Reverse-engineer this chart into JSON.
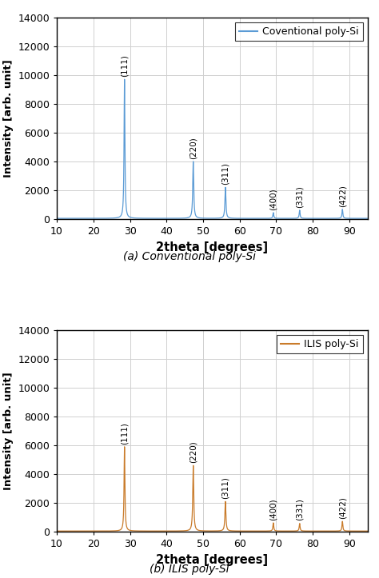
{
  "xlim": [
    10,
    95
  ],
  "ylim": [
    0,
    14000
  ],
  "xticks": [
    10,
    20,
    30,
    40,
    50,
    60,
    70,
    80,
    90
  ],
  "yticks": [
    0,
    2000,
    4000,
    6000,
    8000,
    10000,
    12000,
    14000
  ],
  "xlabel": "2theta [degrees]",
  "ylabel": "Intensity [arb. unit]",
  "caption_a": "(a) Conventional poly-Si",
  "caption_b": "(b) ILIS poly-Si",
  "legend_a": "Coventional poly-Si",
  "legend_b": "ILIS poly-Si",
  "color_a": "#5b9bd5",
  "color_b": "#c97b2a",
  "peaks_a": {
    "positions": [
      28.5,
      47.3,
      56.1,
      69.2,
      76.4,
      88.1
    ],
    "heights": [
      9700,
      4000,
      2200,
      450,
      620,
      680
    ],
    "labels": [
      "(111)",
      "(220)",
      "(311)",
      "(400)",
      "(331)",
      "(422)"
    ],
    "widths": [
      0.28,
      0.32,
      0.32,
      0.28,
      0.28,
      0.28
    ]
  },
  "peaks_b": {
    "positions": [
      28.5,
      47.3,
      56.1,
      69.2,
      76.4,
      88.1
    ],
    "heights": [
      5900,
      4600,
      2100,
      620,
      580,
      720
    ],
    "labels": [
      "(111)",
      "(220)",
      "(311)",
      "(400)",
      "(331)",
      "(422)"
    ],
    "widths": [
      0.28,
      0.32,
      0.32,
      0.28,
      0.28,
      0.28
    ]
  },
  "baseline": 50,
  "background_color": "#ffffff",
  "grid_color": "#d0d0d0"
}
